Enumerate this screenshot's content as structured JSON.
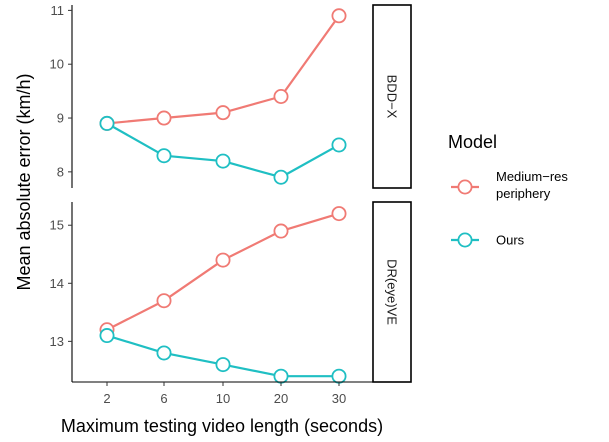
{
  "chart_data": {
    "type": "line",
    "xlabel": "Maximum testing video length (seconds)",
    "ylabel": "Mean absolute error (km/h)",
    "categories": [
      "2",
      "6",
      "10",
      "20",
      "30"
    ],
    "legend": {
      "title": "Model",
      "placement": "right",
      "entries": [
        {
          "lines": [
            "Medium−res",
            "periphery"
          ],
          "color": "#F07A74"
        },
        {
          "lines": [
            "Ours"
          ],
          "color": "#1FBFC3"
        }
      ]
    },
    "grid": false,
    "panels": [
      {
        "strip": "BDD−X",
        "ylim": [
          7.7,
          11.1
        ],
        "yticks": [
          8,
          9,
          10,
          11
        ],
        "series": [
          {
            "name": "Medium−res periphery",
            "color": "#F07A74",
            "values": [
              8.9,
              9.0,
              9.1,
              9.4,
              10.9
            ]
          },
          {
            "name": "Ours",
            "color": "#1FBFC3",
            "values": [
              8.9,
              8.3,
              8.2,
              7.9,
              8.5
            ]
          }
        ]
      },
      {
        "strip": "DR(eye)VE",
        "ylim": [
          12.3,
          15.4
        ],
        "yticks": [
          13,
          14,
          15
        ],
        "series": [
          {
            "name": "Medium−res periphery",
            "color": "#F07A74",
            "values": [
              13.2,
              13.7,
              14.4,
              14.9,
              15.2
            ]
          },
          {
            "name": "Ours",
            "color": "#1FBFC3",
            "values": [
              13.1,
              12.8,
              12.6,
              12.4,
              12.4
            ]
          }
        ]
      }
    ]
  }
}
